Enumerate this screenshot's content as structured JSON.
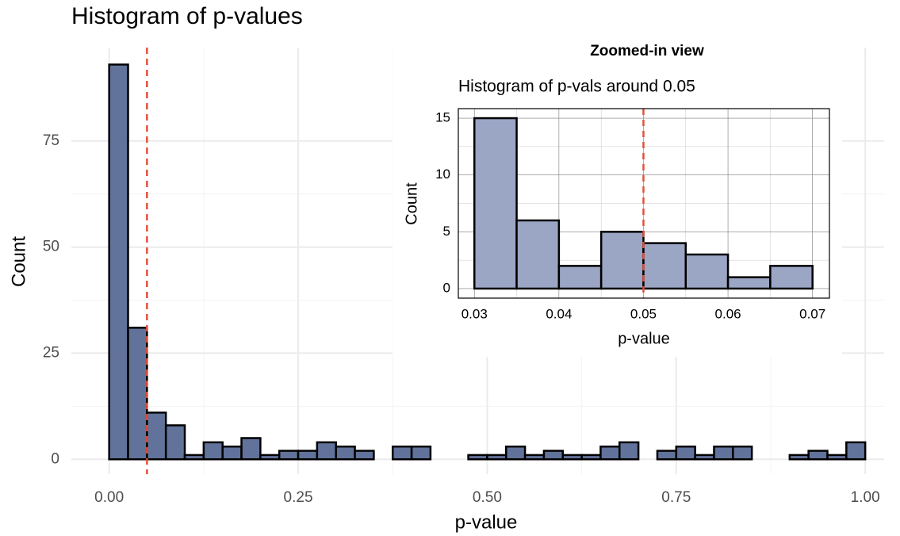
{
  "chart_data": [
    {
      "type": "histogram",
      "title": "Histogram of p-values",
      "x_label": "p-value",
      "y_label": "Count",
      "bins": [
        0,
        0.025,
        0.05,
        0.075,
        0.1,
        0.125,
        0.15,
        0.175,
        0.2,
        0.225,
        0.25,
        0.275,
        0.3,
        0.325,
        0.35,
        0.375,
        0.4,
        0.425,
        0.45,
        0.475,
        0.5,
        0.525,
        0.55,
        0.575,
        0.6,
        0.625,
        0.65,
        0.675,
        0.7,
        0.725,
        0.75,
        0.775,
        0.8,
        0.825,
        0.85,
        0.875,
        0.9,
        0.925,
        0.95,
        0.975,
        1
      ],
      "values": [
        93,
        31,
        11,
        8,
        1,
        4,
        3,
        5,
        1,
        2,
        2,
        4,
        3,
        2,
        0,
        3,
        3,
        0,
        0,
        1,
        1,
        3,
        1,
        2,
        1,
        1,
        3,
        4,
        0,
        2,
        3,
        1,
        3,
        3,
        0,
        0,
        1,
        2,
        1,
        4
      ],
      "color": "#5a6b96",
      "edge_color": "#000000",
      "vline": 0.05,
      "vline_color": "#e4503a",
      "xlim": [
        -0.05,
        1.025
      ],
      "ylim": [
        -3.5,
        97
      ],
      "xticks": [
        {
          "value": 0,
          "label": "0.00"
        },
        0.25,
        {
          "value": 0.5,
          "label": "0.50"
        },
        0.75,
        {
          "value": 1,
          "label": "1.00"
        }
      ],
      "yticks": [
        0,
        25,
        50,
        75
      ],
      "grid": true
    },
    {
      "type": "histogram",
      "title": "Zoomed-in view",
      "subtitle": "Histogram of p-vals around 0.05",
      "x_label": "p-value",
      "y_label": "Count",
      "bins": [
        0.03,
        0.035,
        0.04,
        0.045,
        0.05,
        0.055,
        0.06,
        0.065,
        0.07
      ],
      "values": [
        15,
        6,
        2,
        5,
        4,
        3,
        1,
        2
      ],
      "color": "#9ba5c4",
      "edge_color": "#000000",
      "vline": 0.05,
      "vline_color": "#e4503a",
      "xlim": [
        0.0281,
        0.072
      ],
      "ylim": [
        -0.84,
        15.84
      ],
      "xticks": [
        0.03,
        0.04,
        0.05,
        0.06,
        0.07
      ],
      "yticks": [
        0,
        5,
        10,
        15
      ],
      "grid": true
    }
  ]
}
